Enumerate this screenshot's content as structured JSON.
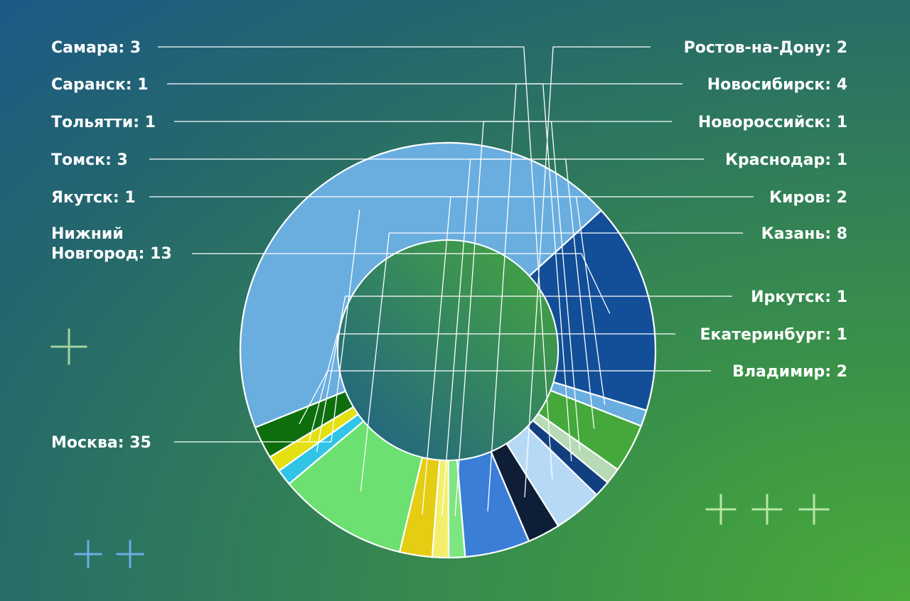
{
  "chart_data": {
    "type": "pie",
    "variant": "donut",
    "series": [
      {
        "label": "Москва",
        "value": 35,
        "color": "#6aaee0",
        "text": "Москва: 35"
      },
      {
        "label": "Нижний Новгород",
        "value": 13,
        "color": "#134f98",
        "text_lines": [
          "Нижний",
          "Новгород: 13"
        ]
      },
      {
        "label": "Якутск",
        "value": 1,
        "color": "#6aaee0",
        "text": "Якутск: 1"
      },
      {
        "label": "Томск",
        "value": 3,
        "color": "#44a83a",
        "text": "Томск: 3"
      },
      {
        "label": "Тольятти",
        "value": 1,
        "color": "#b6dbb6",
        "text": "Тольятти: 1"
      },
      {
        "label": "Саранск",
        "value": 1,
        "color": "#123f80",
        "text": "Саранск: 1"
      },
      {
        "label": "Самара",
        "value": 3,
        "color": "#b6daf6",
        "text": "Самара: 3"
      },
      {
        "label": "Ростов-на-Дону",
        "value": 2,
        "color": "#0e1e36",
        "text": "Ростов-на-Дону: 2"
      },
      {
        "label": "Новосибирск",
        "value": 4,
        "color": "#3a7ed8",
        "text": "Новосибирск: 4"
      },
      {
        "label": "Новороссийск",
        "value": 1,
        "color": "#7ee680",
        "text": "Новороссийск: 1"
      },
      {
        "label": "Краснодар",
        "value": 1,
        "color": "#f3ef6c",
        "text": "Краснодар: 1"
      },
      {
        "label": "Киров",
        "value": 2,
        "color": "#e4cd12",
        "text": "Киров: 2"
      },
      {
        "label": "Казань",
        "value": 8,
        "color": "#6ce070",
        "text": "Казань: 8"
      },
      {
        "label": "Иркутск",
        "value": 1,
        "color": "#30c4e6",
        "text": "Иркутск: 1"
      },
      {
        "label": "Екатеринбург",
        "value": 1,
        "color": "#e4e012",
        "text": "Екатеринбург: 1"
      },
      {
        "label": "Владимир",
        "value": 2,
        "color": "#0e6e0e",
        "text": "Владимир: 2"
      }
    ]
  },
  "decorations": {
    "left_plus_color": "#a3d3a0",
    "bottom_left_plus_color": "#6aaee8",
    "bottom_right_plus_color": "#b8e6a8"
  }
}
